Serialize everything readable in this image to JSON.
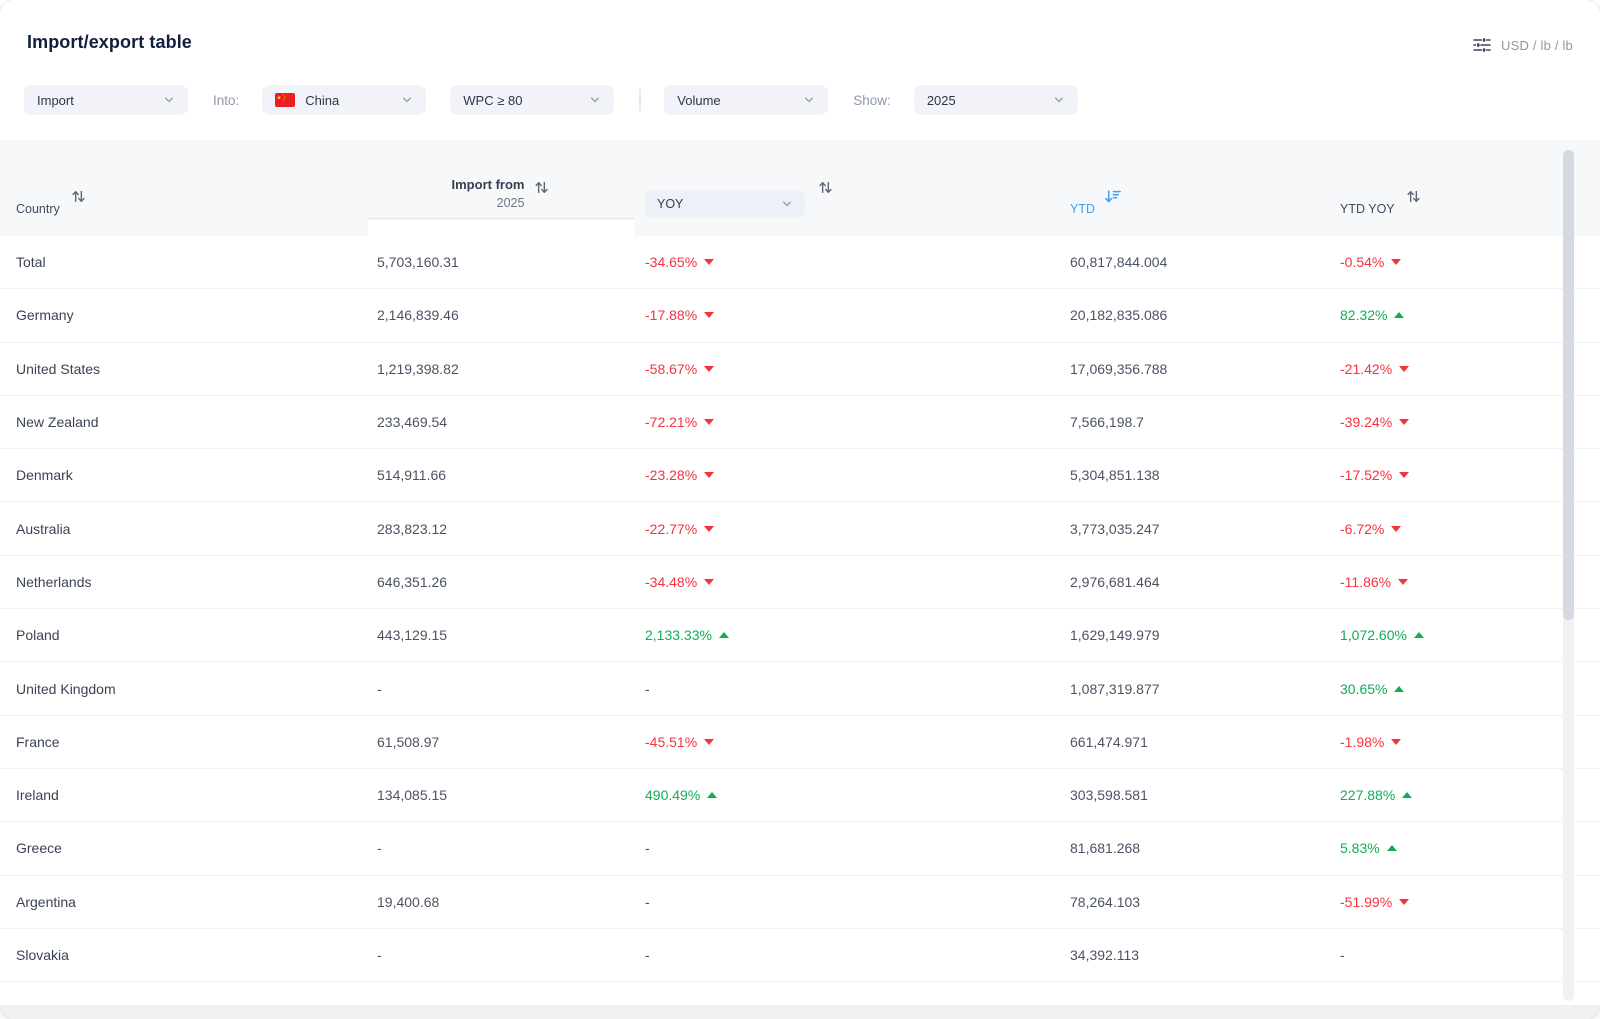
{
  "header": {
    "title": "Import/export table",
    "units_label": "USD / lb / lb"
  },
  "filters": {
    "direction": "Import",
    "into_label": "Into:",
    "country": "China",
    "product": "WPC ≥ 80",
    "measure": "Volume",
    "show_label": "Show:",
    "year": "2025"
  },
  "table": {
    "columns": {
      "country": "Country",
      "import_from_line1": "Import from",
      "import_from_line2": "2025",
      "yoy": "YOY",
      "ytd": "YTD",
      "ytd_yoy": "YTD YOY"
    },
    "sort": {
      "column": "YTD",
      "direction": "desc"
    },
    "rows": [
      {
        "country": "Total",
        "value": "5,703,160.31",
        "yoy": "-34.65%",
        "yoy_dir": "down",
        "ytd": "60,817,844.004",
        "ytd_yoy": "-0.54%",
        "ytd_yoy_dir": "down"
      },
      {
        "country": "Germany",
        "value": "2,146,839.46",
        "yoy": "-17.88%",
        "yoy_dir": "down",
        "ytd": "20,182,835.086",
        "ytd_yoy": "82.32%",
        "ytd_yoy_dir": "up"
      },
      {
        "country": "United States",
        "value": "1,219,398.82",
        "yoy": "-58.67%",
        "yoy_dir": "down",
        "ytd": "17,069,356.788",
        "ytd_yoy": "-21.42%",
        "ytd_yoy_dir": "down"
      },
      {
        "country": "New Zealand",
        "value": "233,469.54",
        "yoy": "-72.21%",
        "yoy_dir": "down",
        "ytd": "7,566,198.7",
        "ytd_yoy": "-39.24%",
        "ytd_yoy_dir": "down"
      },
      {
        "country": "Denmark",
        "value": "514,911.66",
        "yoy": "-23.28%",
        "yoy_dir": "down",
        "ytd": "5,304,851.138",
        "ytd_yoy": "-17.52%",
        "ytd_yoy_dir": "down"
      },
      {
        "country": "Australia",
        "value": "283,823.12",
        "yoy": "-22.77%",
        "yoy_dir": "down",
        "ytd": "3,773,035.247",
        "ytd_yoy": "-6.72%",
        "ytd_yoy_dir": "down"
      },
      {
        "country": "Netherlands",
        "value": "646,351.26",
        "yoy": "-34.48%",
        "yoy_dir": "down",
        "ytd": "2,976,681.464",
        "ytd_yoy": "-11.86%",
        "ytd_yoy_dir": "down"
      },
      {
        "country": "Poland",
        "value": "443,129.15",
        "yoy": "2,133.33%",
        "yoy_dir": "up",
        "ytd": "1,629,149.979",
        "ytd_yoy": "1,072.60%",
        "ytd_yoy_dir": "up"
      },
      {
        "country": "United Kingdom",
        "value": "-",
        "yoy": "-",
        "yoy_dir": "",
        "ytd": "1,087,319.877",
        "ytd_yoy": "30.65%",
        "ytd_yoy_dir": "up"
      },
      {
        "country": "France",
        "value": "61,508.97",
        "yoy": "-45.51%",
        "yoy_dir": "down",
        "ytd": "661,474.971",
        "ytd_yoy": "-1.98%",
        "ytd_yoy_dir": "down"
      },
      {
        "country": "Ireland",
        "value": "134,085.15",
        "yoy": "490.49%",
        "yoy_dir": "up",
        "ytd": "303,598.581",
        "ytd_yoy": "227.88%",
        "ytd_yoy_dir": "up"
      },
      {
        "country": "Greece",
        "value": "-",
        "yoy": "-",
        "yoy_dir": "",
        "ytd": "81,681.268",
        "ytd_yoy": "5.83%",
        "ytd_yoy_dir": "up"
      },
      {
        "country": "Argentina",
        "value": "19,400.68",
        "yoy": "-",
        "yoy_dir": "",
        "ytd": "78,264.103",
        "ytd_yoy": "-51.99%",
        "ytd_yoy_dir": "down"
      },
      {
        "country": "Slovakia",
        "value": "-",
        "yoy": "-",
        "yoy_dir": "",
        "ytd": "34,392.113",
        "ytd_yoy": "-",
        "ytd_yoy_dir": ""
      }
    ]
  },
  "colors": {
    "up_green": "#0fae56",
    "down_red": "#f5333f",
    "accent_blue": "#38a0f6",
    "header_bg": "#f7f8fa"
  }
}
